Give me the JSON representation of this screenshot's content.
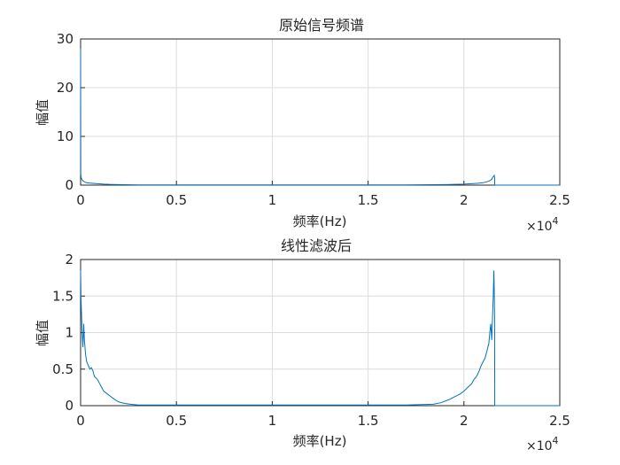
{
  "chart_data": [
    {
      "type": "line",
      "title": "原始信号频谱",
      "xlabel": "频率(Hz)",
      "ylabel": "幅值",
      "xlim": [
        0,
        25000
      ],
      "ylim": [
        0,
        30
      ],
      "xticks": [
        0,
        5000,
        10000,
        15000,
        20000,
        25000
      ],
      "xtick_labels": [
        "0",
        "0.5",
        "1",
        "1.5",
        "2",
        "2.5"
      ],
      "yticks": [
        0,
        10,
        20,
        30
      ],
      "ytick_labels": [
        "0",
        "10",
        "20",
        "30"
      ],
      "x_exponent": "×10",
      "x_exponent_power": "4",
      "grid": true,
      "line_color": "#0072bd",
      "series": [
        {
          "x": [
            0,
            5,
            10,
            30,
            60,
            100,
            150,
            200,
            300,
            500,
            800,
            1200,
            1600,
            2000,
            3000,
            5000,
            8000,
            11000,
            14000,
            17000,
            19000,
            20000,
            20500,
            20800,
            21000,
            21200,
            21350,
            21450,
            21500,
            21550,
            21580,
            21600,
            21605,
            21610,
            25000
          ],
          "y": [
            28,
            15,
            2.2,
            1.6,
            1.2,
            1.0,
            0.8,
            0.7,
            0.5,
            0.4,
            0.3,
            0.2,
            0.15,
            0.1,
            0.06,
            0.04,
            0.03,
            0.03,
            0.04,
            0.06,
            0.1,
            0.2,
            0.3,
            0.4,
            0.5,
            0.7,
            0.9,
            1.2,
            1.6,
            1.8,
            2.0,
            1.5,
            0.5,
            0,
            0
          ]
        }
      ]
    },
    {
      "type": "line",
      "title": "线性滤波后",
      "xlabel": "频率(Hz)",
      "ylabel": "幅值",
      "xlim": [
        0,
        25000
      ],
      "ylim": [
        0,
        2
      ],
      "xticks": [
        0,
        5000,
        10000,
        15000,
        20000,
        25000
      ],
      "xtick_labels": [
        "0",
        "0.5",
        "1",
        "1.5",
        "2",
        "2.5"
      ],
      "yticks": [
        0,
        0.5,
        1,
        1.5,
        2
      ],
      "ytick_labels": [
        "0",
        "0.5",
        "1",
        "1.5",
        "2"
      ],
      "x_exponent": "×10",
      "x_exponent_power": "4",
      "grid": true,
      "line_color": "#0072bd",
      "series": [
        {
          "x": [
            0,
            20,
            40,
            80,
            120,
            160,
            200,
            260,
            320,
            400,
            480,
            560,
            640,
            720,
            800,
            900,
            1000,
            1100,
            1200,
            1400,
            1600,
            1800,
            2000,
            2300,
            2600,
            3000,
            5000,
            8000,
            11000,
            14000,
            17000,
            18400,
            18800,
            19200,
            19500,
            19800,
            20000,
            20200,
            20400,
            20500,
            20600,
            20700,
            20800,
            20900,
            21000,
            21100,
            21200,
            21300,
            21350,
            21400,
            21450,
            21500,
            21530,
            21560,
            21580,
            21600,
            21605,
            21610,
            25000
          ],
          "y": [
            1.85,
            1.5,
            1.3,
            1.0,
            0.8,
            1.12,
            0.9,
            0.7,
            0.6,
            0.55,
            0.5,
            0.52,
            0.48,
            0.4,
            0.38,
            0.35,
            0.3,
            0.25,
            0.2,
            0.16,
            0.12,
            0.08,
            0.05,
            0.03,
            0.02,
            0.01,
            0.01,
            0.01,
            0.01,
            0.01,
            0.01,
            0.02,
            0.04,
            0.08,
            0.12,
            0.16,
            0.2,
            0.25,
            0.3,
            0.35,
            0.38,
            0.42,
            0.48,
            0.55,
            0.6,
            0.65,
            0.75,
            0.85,
            1.0,
            1.12,
            0.9,
            1.3,
            1.5,
            1.85,
            1.6,
            1.2,
            0.5,
            0,
            0
          ]
        }
      ]
    }
  ]
}
